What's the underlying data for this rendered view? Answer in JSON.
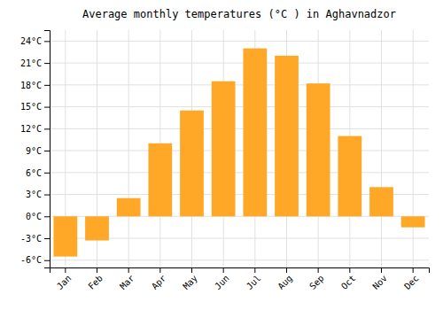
{
  "chart_data": {
    "type": "bar",
    "title": "Average monthly temperatures (°C ) in Aghavnadzor",
    "categories": [
      "Jan",
      "Feb",
      "Mar",
      "Apr",
      "May",
      "Jun",
      "Jul",
      "Aug",
      "Sep",
      "Oct",
      "Nov",
      "Dec"
    ],
    "values": [
      -5.5,
      -3.3,
      2.5,
      10.0,
      14.5,
      18.5,
      23.0,
      22.0,
      18.2,
      11.0,
      4.0,
      -1.5
    ],
    "color": "#FFA726",
    "ylim": [
      -7,
      25.5
    ],
    "yticks": [
      {
        "value": -6,
        "label": "-6°C"
      },
      {
        "value": -3,
        "label": "-3°C"
      },
      {
        "value": 0,
        "label": "0°C"
      },
      {
        "value": 3,
        "label": "3°C"
      },
      {
        "value": 6,
        "label": "6°C"
      },
      {
        "value": 9,
        "label": "9°C"
      },
      {
        "value": 12,
        "label": "12°C"
      },
      {
        "value": 15,
        "label": "15°C"
      },
      {
        "value": 18,
        "label": "18°C"
      },
      {
        "value": 21,
        "label": "21°C"
      },
      {
        "value": 24,
        "label": "24°C"
      }
    ],
    "grid": true
  }
}
